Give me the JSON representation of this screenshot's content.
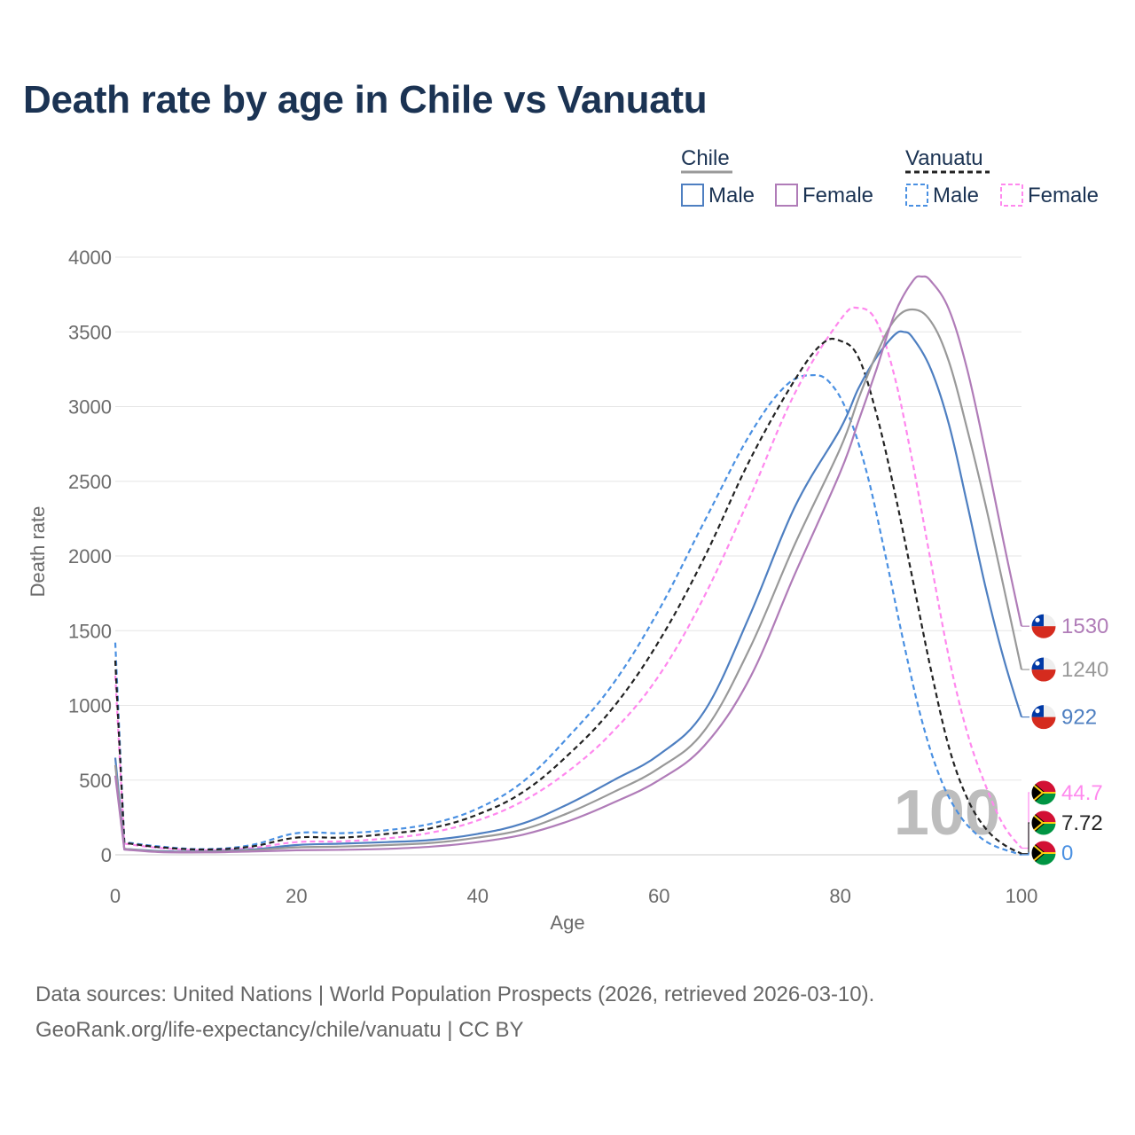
{
  "title": "Death rate by age in Chile vs Vanuatu",
  "legend": {
    "groups": [
      {
        "name": "Chile",
        "line_color": "#999999",
        "dashed": false,
        "items": [
          {
            "label": "Male",
            "color": "#4e7fc1"
          },
          {
            "label": "Female",
            "color": "#b07cb8"
          }
        ]
      },
      {
        "name": "Vanuatu",
        "line_color": "#222222",
        "dashed": true,
        "items": [
          {
            "label": "Male",
            "color": "#4a90e2"
          },
          {
            "label": "Female",
            "color": "#ff88ee"
          }
        ]
      }
    ]
  },
  "watermark": "100",
  "footer": {
    "source": "Data sources: United Nations | World Population Prospects (2026, retrieved 2026-03-10).",
    "link": "GeoRank.org/life-expectancy/chile/vanuatu | CC BY"
  },
  "chart_data": {
    "type": "line",
    "title": "Death rate by age in Chile vs Vanuatu",
    "xlabel": "Age",
    "ylabel": "Death rate",
    "xlim": [
      0,
      100
    ],
    "ylim": [
      0,
      4000
    ],
    "xticks": [
      0,
      20,
      40,
      60,
      80,
      100
    ],
    "yticks": [
      0,
      500,
      1000,
      1500,
      2000,
      2500,
      3000,
      3500,
      4000
    ],
    "grid": true,
    "series": [
      {
        "name": "Chile Total",
        "country": "Chile",
        "color": "#999999",
        "dashed": false,
        "end_label": "1240",
        "points": [
          [
            0,
            600
          ],
          [
            1,
            40
          ],
          [
            5,
            22
          ],
          [
            10,
            20
          ],
          [
            15,
            30
          ],
          [
            20,
            50
          ],
          [
            25,
            55
          ],
          [
            30,
            65
          ],
          [
            35,
            80
          ],
          [
            40,
            115
          ],
          [
            45,
            170
          ],
          [
            50,
            280
          ],
          [
            55,
            420
          ],
          [
            60,
            580
          ],
          [
            65,
            830
          ],
          [
            70,
            1380
          ],
          [
            75,
            2080
          ],
          [
            80,
            2720
          ],
          [
            82,
            3050
          ],
          [
            84,
            3350
          ],
          [
            86,
            3580
          ],
          [
            88,
            3650
          ],
          [
            90,
            3570
          ],
          [
            92,
            3300
          ],
          [
            94,
            2850
          ],
          [
            96,
            2350
          ],
          [
            98,
            1800
          ],
          [
            100,
            1240
          ]
        ]
      },
      {
        "name": "Chile Male",
        "country": "Chile",
        "color": "#4e7fc1",
        "dashed": false,
        "end_label": "922",
        "points": [
          [
            0,
            650
          ],
          [
            1,
            40
          ],
          [
            5,
            25
          ],
          [
            10,
            22
          ],
          [
            15,
            35
          ],
          [
            20,
            65
          ],
          [
            25,
            75
          ],
          [
            30,
            85
          ],
          [
            35,
            100
          ],
          [
            40,
            140
          ],
          [
            45,
            210
          ],
          [
            50,
            340
          ],
          [
            55,
            500
          ],
          [
            60,
            670
          ],
          [
            65,
            960
          ],
          [
            70,
            1600
          ],
          [
            75,
            2330
          ],
          [
            80,
            2850
          ],
          [
            82,
            3120
          ],
          [
            84,
            3330
          ],
          [
            86,
            3480
          ],
          [
            87,
            3500
          ],
          [
            88,
            3460
          ],
          [
            90,
            3250
          ],
          [
            92,
            2880
          ],
          [
            94,
            2350
          ],
          [
            96,
            1800
          ],
          [
            98,
            1320
          ],
          [
            100,
            922
          ]
        ]
      },
      {
        "name": "Chile Female",
        "country": "Chile",
        "color": "#b07cb8",
        "dashed": false,
        "end_label": "1530",
        "points": [
          [
            0,
            530
          ],
          [
            1,
            35
          ],
          [
            5,
            18
          ],
          [
            10,
            16
          ],
          [
            15,
            22
          ],
          [
            20,
            30
          ],
          [
            25,
            33
          ],
          [
            30,
            40
          ],
          [
            35,
            55
          ],
          [
            40,
            85
          ],
          [
            45,
            135
          ],
          [
            50,
            225
          ],
          [
            55,
            350
          ],
          [
            60,
            500
          ],
          [
            65,
            730
          ],
          [
            70,
            1180
          ],
          [
            75,
            1880
          ],
          [
            80,
            2560
          ],
          [
            82,
            2900
          ],
          [
            84,
            3250
          ],
          [
            86,
            3620
          ],
          [
            88,
            3840
          ],
          [
            89,
            3870
          ],
          [
            90,
            3840
          ],
          [
            92,
            3650
          ],
          [
            94,
            3250
          ],
          [
            96,
            2700
          ],
          [
            98,
            2100
          ],
          [
            100,
            1530
          ]
        ]
      },
      {
        "name": "Vanuatu Total",
        "country": "Vanuatu",
        "color": "#222222",
        "dashed": true,
        "end_label": "7.72",
        "points": [
          [
            0,
            1300
          ],
          [
            1,
            80
          ],
          [
            5,
            50
          ],
          [
            10,
            35
          ],
          [
            15,
            55
          ],
          [
            20,
            115
          ],
          [
            25,
            115
          ],
          [
            30,
            140
          ],
          [
            35,
            180
          ],
          [
            40,
            270
          ],
          [
            45,
            420
          ],
          [
            50,
            670
          ],
          [
            55,
            990
          ],
          [
            60,
            1430
          ],
          [
            65,
            1990
          ],
          [
            70,
            2640
          ],
          [
            75,
            3180
          ],
          [
            78,
            3420
          ],
          [
            80,
            3440
          ],
          [
            82,
            3330
          ],
          [
            84,
            2950
          ],
          [
            86,
            2430
          ],
          [
            88,
            1840
          ],
          [
            90,
            1240
          ],
          [
            92,
            720
          ],
          [
            94,
            380
          ],
          [
            96,
            180
          ],
          [
            98,
            70
          ],
          [
            100,
            7.72
          ]
        ]
      },
      {
        "name": "Vanuatu Male",
        "country": "Vanuatu",
        "color": "#4a90e2",
        "dashed": true,
        "end_label": "0",
        "points": [
          [
            0,
            1420
          ],
          [
            1,
            85
          ],
          [
            5,
            55
          ],
          [
            10,
            38
          ],
          [
            15,
            65
          ],
          [
            20,
            145
          ],
          [
            25,
            145
          ],
          [
            30,
            165
          ],
          [
            35,
            210
          ],
          [
            40,
            310
          ],
          [
            45,
            490
          ],
          [
            50,
            790
          ],
          [
            55,
            1150
          ],
          [
            60,
            1640
          ],
          [
            65,
            2230
          ],
          [
            70,
            2810
          ],
          [
            74,
            3140
          ],
          [
            77,
            3210
          ],
          [
            79,
            3150
          ],
          [
            81,
            2930
          ],
          [
            83,
            2540
          ],
          [
            85,
            2000
          ],
          [
            87,
            1420
          ],
          [
            89,
            900
          ],
          [
            91,
            520
          ],
          [
            93,
            280
          ],
          [
            95,
            140
          ],
          [
            97,
            60
          ],
          [
            100,
            0
          ]
        ]
      },
      {
        "name": "Vanuatu Female",
        "country": "Vanuatu",
        "color": "#ff88ee",
        "dashed": true,
        "end_label": "44.7",
        "points": [
          [
            0,
            1200
          ],
          [
            1,
            75
          ],
          [
            5,
            45
          ],
          [
            10,
            30
          ],
          [
            15,
            45
          ],
          [
            20,
            85
          ],
          [
            25,
            90
          ],
          [
            30,
            110
          ],
          [
            35,
            150
          ],
          [
            40,
            230
          ],
          [
            45,
            360
          ],
          [
            50,
            560
          ],
          [
            55,
            830
          ],
          [
            60,
            1200
          ],
          [
            65,
            1730
          ],
          [
            70,
            2390
          ],
          [
            75,
            3090
          ],
          [
            80,
            3580
          ],
          [
            82,
            3660
          ],
          [
            84,
            3570
          ],
          [
            86,
            3200
          ],
          [
            88,
            2620
          ],
          [
            90,
            1960
          ],
          [
            92,
            1320
          ],
          [
            94,
            820
          ],
          [
            96,
            470
          ],
          [
            98,
            200
          ],
          [
            100,
            44.7
          ]
        ]
      }
    ]
  }
}
